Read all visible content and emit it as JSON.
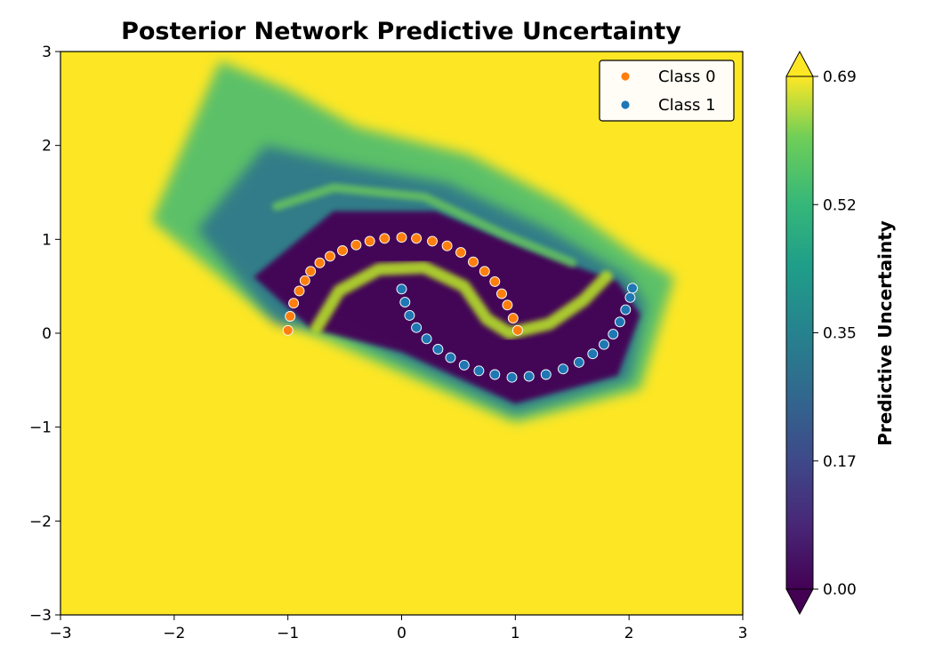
{
  "chart_data": {
    "type": "scatter",
    "title": "Posterior Network Predictive Uncertainty",
    "xlabel": "",
    "ylabel": "",
    "xlim": [
      -3,
      3
    ],
    "ylim": [
      -3,
      3
    ],
    "x_ticks": [
      "−3",
      "−2",
      "−1",
      "0",
      "1",
      "2",
      "3"
    ],
    "y_ticks": [
      "3",
      "2",
      "1",
      "0",
      "−1",
      "−2",
      "−3"
    ],
    "background": "filled contour of predictive uncertainty (viridis); low (dark) along the two moons, high (yellow) far from data",
    "legend": {
      "placement": "top-right",
      "entries": [
        "Class 0",
        "Class 1"
      ]
    },
    "series": [
      {
        "name": "Class 0",
        "color": "#ff7f0e",
        "shape": "upper moon arc",
        "points": [
          [
            -1.0,
            0.03
          ],
          [
            -0.98,
            0.18
          ],
          [
            -0.95,
            0.32
          ],
          [
            -0.9,
            0.45
          ],
          [
            -0.85,
            0.56
          ],
          [
            -0.8,
            0.66
          ],
          [
            -0.72,
            0.75
          ],
          [
            -0.63,
            0.82
          ],
          [
            -0.52,
            0.88
          ],
          [
            -0.4,
            0.94
          ],
          [
            -0.28,
            0.98
          ],
          [
            -0.15,
            1.01
          ],
          [
            0.0,
            1.02
          ],
          [
            0.13,
            1.01
          ],
          [
            0.27,
            0.98
          ],
          [
            0.4,
            0.93
          ],
          [
            0.52,
            0.86
          ],
          [
            0.63,
            0.76
          ],
          [
            0.73,
            0.66
          ],
          [
            0.82,
            0.55
          ],
          [
            0.88,
            0.42
          ],
          [
            0.93,
            0.3
          ],
          [
            0.98,
            0.16
          ],
          [
            1.02,
            0.03
          ]
        ]
      },
      {
        "name": "Class 1",
        "color": "#1f77b4",
        "shape": "lower moon arc",
        "points": [
          [
            0.0,
            0.47
          ],
          [
            0.03,
            0.33
          ],
          [
            0.07,
            0.19
          ],
          [
            0.13,
            0.06
          ],
          [
            0.22,
            -0.06
          ],
          [
            0.32,
            -0.17
          ],
          [
            0.43,
            -0.26
          ],
          [
            0.55,
            -0.34
          ],
          [
            0.68,
            -0.4
          ],
          [
            0.82,
            -0.44
          ],
          [
            0.97,
            -0.47
          ],
          [
            1.12,
            -0.46
          ],
          [
            1.27,
            -0.44
          ],
          [
            1.42,
            -0.38
          ],
          [
            1.56,
            -0.31
          ],
          [
            1.68,
            -0.22
          ],
          [
            1.78,
            -0.12
          ],
          [
            1.86,
            -0.01
          ],
          [
            1.92,
            0.12
          ],
          [
            1.97,
            0.25
          ],
          [
            2.01,
            0.38
          ],
          [
            2.03,
            0.48
          ]
        ]
      }
    ],
    "colorbar": {
      "label": "Predictive Uncertainty",
      "colormap": "viridis",
      "range": [
        0.0,
        0.69
      ],
      "extend": "both",
      "ticks": [
        "0.69",
        "0.52",
        "0.35",
        "0.17",
        "0.00"
      ]
    },
    "colors": {
      "high_uncertainty": "#fde725",
      "low_uncertainty": "#440154",
      "class0": "#ff7f0e",
      "class1": "#1f77b4"
    }
  }
}
